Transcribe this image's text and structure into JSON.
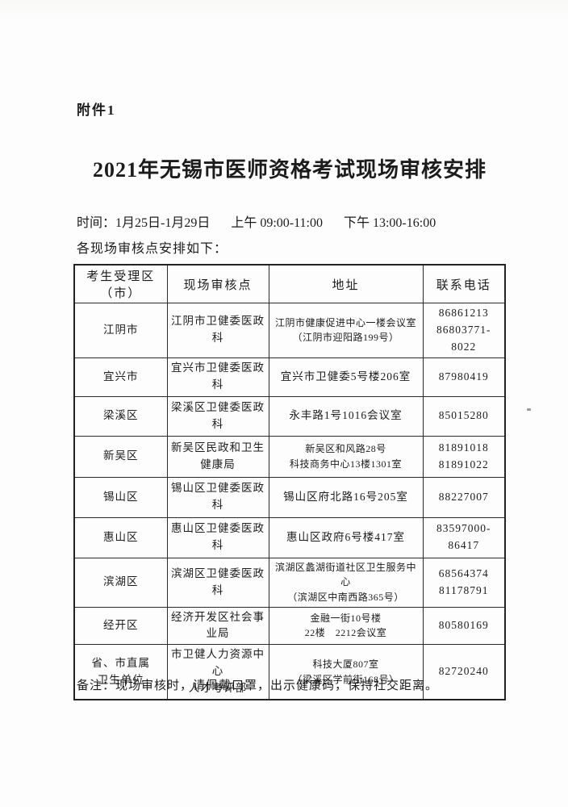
{
  "header": {
    "attachment_label": "附件1",
    "title": "2021年无锡市医师资格考试现场审核安排"
  },
  "schedule": {
    "time_range": "时间：1月25日-1月29日",
    "morning": "上午 09:00-11:00",
    "afternoon": "下午 13:00-16:00",
    "intro": "各现场审核点安排如下："
  },
  "table": {
    "headers": [
      "考生受理区（市）",
      "现场审核点",
      "地址",
      "联系电话"
    ],
    "rows": [
      {
        "region": "江阴市",
        "site": "江阴市卫健委医政科",
        "address": [
          "江阴市健康促进中心一楼会议室",
          "（江阴市迎阳路199号）"
        ],
        "phone": [
          "86861213",
          "86803771-8022"
        ]
      },
      {
        "region": "宜兴市",
        "site": "宜兴市卫健委医政科",
        "address": [
          "宜兴市卫健委5号楼206室"
        ],
        "phone": [
          "87980419"
        ]
      },
      {
        "region": "梁溪区",
        "site": "梁溪区卫健委医政科",
        "address": [
          "永丰路1号1016会议室"
        ],
        "phone": [
          "85015280"
        ]
      },
      {
        "region": "新吴区",
        "site": "新吴区民政和卫生健康局",
        "address": [
          "新吴区和风路28号",
          "科技商务中心13楼1301室"
        ],
        "phone": [
          "81891018",
          "81891022"
        ]
      },
      {
        "region": "锡山区",
        "site": "锡山区卫健委医政科",
        "address": [
          "锡山区府北路16号205室"
        ],
        "phone": [
          "88227007"
        ]
      },
      {
        "region": "惠山区",
        "site": "惠山区卫健委医政科",
        "address": [
          "惠山区政府6号楼417室"
        ],
        "phone": [
          "83597000-86417"
        ]
      },
      {
        "region": "滨湖区",
        "site": "滨湖区卫健委医政科",
        "address": [
          "滨湖区蠡湖街道社区卫生服务中心",
          "（滨湖区中南西路365号）"
        ],
        "phone": [
          "68564374",
          "81178791"
        ]
      },
      {
        "region": "经开区",
        "site": "经济开发区社会事业局",
        "address": [
          "金融一街10号楼",
          "22楼　2212会议室"
        ],
        "phone": [
          "80580169"
        ]
      },
      {
        "region": [
          "省、市直属",
          "卫生单位"
        ],
        "site": [
          "市卫健人力资源中心",
          "人才考评部"
        ],
        "address": [
          "科技大厦807室",
          "（梁溪区学前街168号）"
        ],
        "phone": [
          "82720240"
        ]
      }
    ]
  },
  "footer": {
    "note": "备注：现场审核时，请佩戴口罩，出示健康码，保持社交距离。"
  },
  "colors": {
    "ink": "#1c1c1c",
    "paper": "#fdfdfd",
    "table_border": "#2a2a2a"
  }
}
